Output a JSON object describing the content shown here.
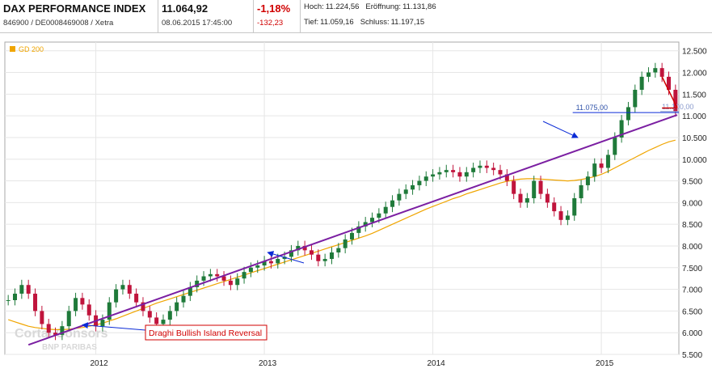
{
  "header": {
    "title": "DAX PERFORMANCE INDEX",
    "subtitle": "846900 / DE0008469008 / Xetra",
    "price": "11.064,92",
    "datetime": "08.06.2015 17:45:00",
    "change_pct": "-1,18%",
    "change_abs": "-132,23",
    "high_label": "Hoch:",
    "high_value": "11.224,56",
    "open_label": "Eröffnung:",
    "open_value": "11.131,86",
    "low_label": "Tief:",
    "low_value": "11.059,16",
    "close_label": "Schluss:",
    "close_value": "11.197,15"
  },
  "colors": {
    "candle_up": "#1f7a3a",
    "candle_down": "#c0143c",
    "ma200": "#f0a500",
    "trendline": "#7b1fa2",
    "arrow": "#0b2bd6",
    "hline": "#0b2bd6",
    "redline": "#d00000"
  },
  "chart_data": {
    "type": "line",
    "title": "",
    "legend": [
      "GD 200"
    ],
    "legend_position": "top-left",
    "xlabel": "",
    "ylabel": "",
    "ylim": [
      5500,
      12700
    ],
    "y_ticks": [
      "5.500",
      "6.000",
      "6.500",
      "7.000",
      "7.500",
      "8.000",
      "8.500",
      "9.000",
      "9.500",
      "10.000",
      "10.500",
      "11.000",
      "11.500",
      "12.000",
      "12.500"
    ],
    "x_ticks": [
      "2012",
      "2013",
      "2014",
      "2015"
    ],
    "grid": true,
    "series": [
      {
        "name": "",
        "kind": "candlestick",
        "x": [
          2011.48,
          2011.52,
          2011.56,
          2011.6,
          2011.64,
          2011.68,
          2011.72,
          2011.76,
          2011.8,
          2011.84,
          2011.88,
          2011.92,
          2011.96,
          2012.0,
          2012.04,
          2012.08,
          2012.12,
          2012.16,
          2012.2,
          2012.24,
          2012.28,
          2012.32,
          2012.36,
          2012.4,
          2012.44,
          2012.48,
          2012.52,
          2012.56,
          2012.6,
          2012.64,
          2012.68,
          2012.72,
          2012.76,
          2012.8,
          2012.84,
          2012.88,
          2012.92,
          2012.96,
          2013.0,
          2013.04,
          2013.08,
          2013.12,
          2013.16,
          2013.2,
          2013.24,
          2013.28,
          2013.32,
          2013.36,
          2013.4,
          2013.44,
          2013.48,
          2013.52,
          2013.56,
          2013.6,
          2013.64,
          2013.68,
          2013.72,
          2013.76,
          2013.8,
          2013.84,
          2013.88,
          2013.92,
          2013.96,
          2014.0,
          2014.04,
          2014.08,
          2014.12,
          2014.16,
          2014.2,
          2014.24,
          2014.28,
          2014.32,
          2014.36,
          2014.4,
          2014.44,
          2014.48,
          2014.52,
          2014.56,
          2014.6,
          2014.64,
          2014.68,
          2014.72,
          2014.76,
          2014.8,
          2014.84,
          2014.88,
          2014.92,
          2014.96,
          2015.0,
          2015.04,
          2015.08,
          2015.12,
          2015.16,
          2015.2,
          2015.24,
          2015.28,
          2015.32,
          2015.36,
          2015.4,
          2015.44
        ],
        "y": [
          6750,
          6900,
          7100,
          6900,
          6500,
          6200,
          6000,
          5950,
          6150,
          6500,
          6800,
          6650,
          6400,
          6150,
          6300,
          6700,
          7000,
          7100,
          6900,
          6700,
          6500,
          6350,
          6200,
          6300,
          6500,
          6700,
          6850,
          7050,
          7200,
          7300,
          7350,
          7300,
          7200,
          7100,
          7250,
          7400,
          7500,
          7550,
          7650,
          7600,
          7700,
          7750,
          7900,
          8000,
          7900,
          7800,
          7650,
          7700,
          7850,
          7950,
          8150,
          8300,
          8450,
          8550,
          8650,
          8750,
          8900,
          9050,
          9200,
          9300,
          9400,
          9500,
          9600,
          9650,
          9700,
          9750,
          9700,
          9600,
          9700,
          9800,
          9850,
          9800,
          9750,
          9650,
          9500,
          9200,
          9000,
          9100,
          9500,
          9200,
          9000,
          8800,
          8600,
          8700,
          9100,
          9400,
          9600,
          9900,
          9800,
          10100,
          10500,
          10900,
          11200,
          11600,
          11900,
          12000,
          12100,
          11900,
          11600,
          11100
        ]
      },
      {
        "name": "GD 200",
        "kind": "line",
        "x": [
          2011.48,
          2011.52,
          2011.56,
          2011.6,
          2011.64,
          2011.68,
          2011.72,
          2011.76,
          2011.8,
          2011.84,
          2011.88,
          2011.92,
          2011.96,
          2012.0,
          2012.04,
          2012.08,
          2012.12,
          2012.16,
          2012.2,
          2012.24,
          2012.28,
          2012.32,
          2012.36,
          2012.4,
          2012.44,
          2012.48,
          2012.52,
          2012.56,
          2012.6,
          2012.64,
          2012.68,
          2012.72,
          2012.76,
          2012.8,
          2012.84,
          2012.88,
          2012.92,
          2012.96,
          2013.0,
          2013.04,
          2013.08,
          2013.12,
          2013.16,
          2013.2,
          2013.24,
          2013.28,
          2013.32,
          2013.36,
          2013.4,
          2013.44,
          2013.48,
          2013.52,
          2013.56,
          2013.6,
          2013.64,
          2013.68,
          2013.72,
          2013.76,
          2013.8,
          2013.84,
          2013.88,
          2013.92,
          2013.96,
          2014.0,
          2014.04,
          2014.08,
          2014.12,
          2014.16,
          2014.2,
          2014.24,
          2014.28,
          2014.32,
          2014.36,
          2014.4,
          2014.44,
          2014.48,
          2014.52,
          2014.56,
          2014.6,
          2014.64,
          2014.68,
          2014.72,
          2014.76,
          2014.8,
          2014.84,
          2014.88,
          2014.92,
          2014.96,
          2015.0,
          2015.04,
          2015.08,
          2015.12,
          2015.16,
          2015.2,
          2015.24,
          2015.28,
          2015.32,
          2015.36,
          2015.4,
          2015.44
        ],
        "y": [
          6300,
          6250,
          6200,
          6150,
          6120,
          6100,
          6080,
          6070,
          6070,
          6080,
          6100,
          6120,
          6150,
          6180,
          6220,
          6270,
          6320,
          6380,
          6440,
          6500,
          6560,
          6620,
          6680,
          6730,
          6780,
          6830,
          6880,
          6930,
          6980,
          7030,
          7080,
          7130,
          7180,
          7230,
          7280,
          7330,
          7380,
          7430,
          7480,
          7530,
          7580,
          7630,
          7680,
          7730,
          7780,
          7830,
          7880,
          7930,
          7980,
          8030,
          8080,
          8130,
          8180,
          8230,
          8290,
          8360,
          8430,
          8500,
          8570,
          8640,
          8710,
          8780,
          8850,
          8910,
          8970,
          9030,
          9090,
          9140,
          9200,
          9250,
          9300,
          9350,
          9400,
          9450,
          9490,
          9520,
          9540,
          9550,
          9550,
          9540,
          9530,
          9520,
          9510,
          9500,
          9510,
          9530,
          9560,
          9600,
          9650,
          9720,
          9800,
          9880,
          9960,
          10040,
          10120,
          10200,
          10270,
          10340,
          10400,
          10440
        ]
      }
    ],
    "annotations": {
      "trendline": {
        "from": [
          2011.6,
          5720
        ],
        "to": [
          2015.45,
          11020
        ]
      },
      "hline_label": "11.075,00",
      "hline_value": 11075,
      "hline_label2": "11.100,00",
      "hline_value2": 11100,
      "callout_label": "Draghi Bullish Island Reversal"
    },
    "watermark": {
      "line1": "Cortal Consors",
      "line2": "BNP PARIBAS"
    }
  }
}
